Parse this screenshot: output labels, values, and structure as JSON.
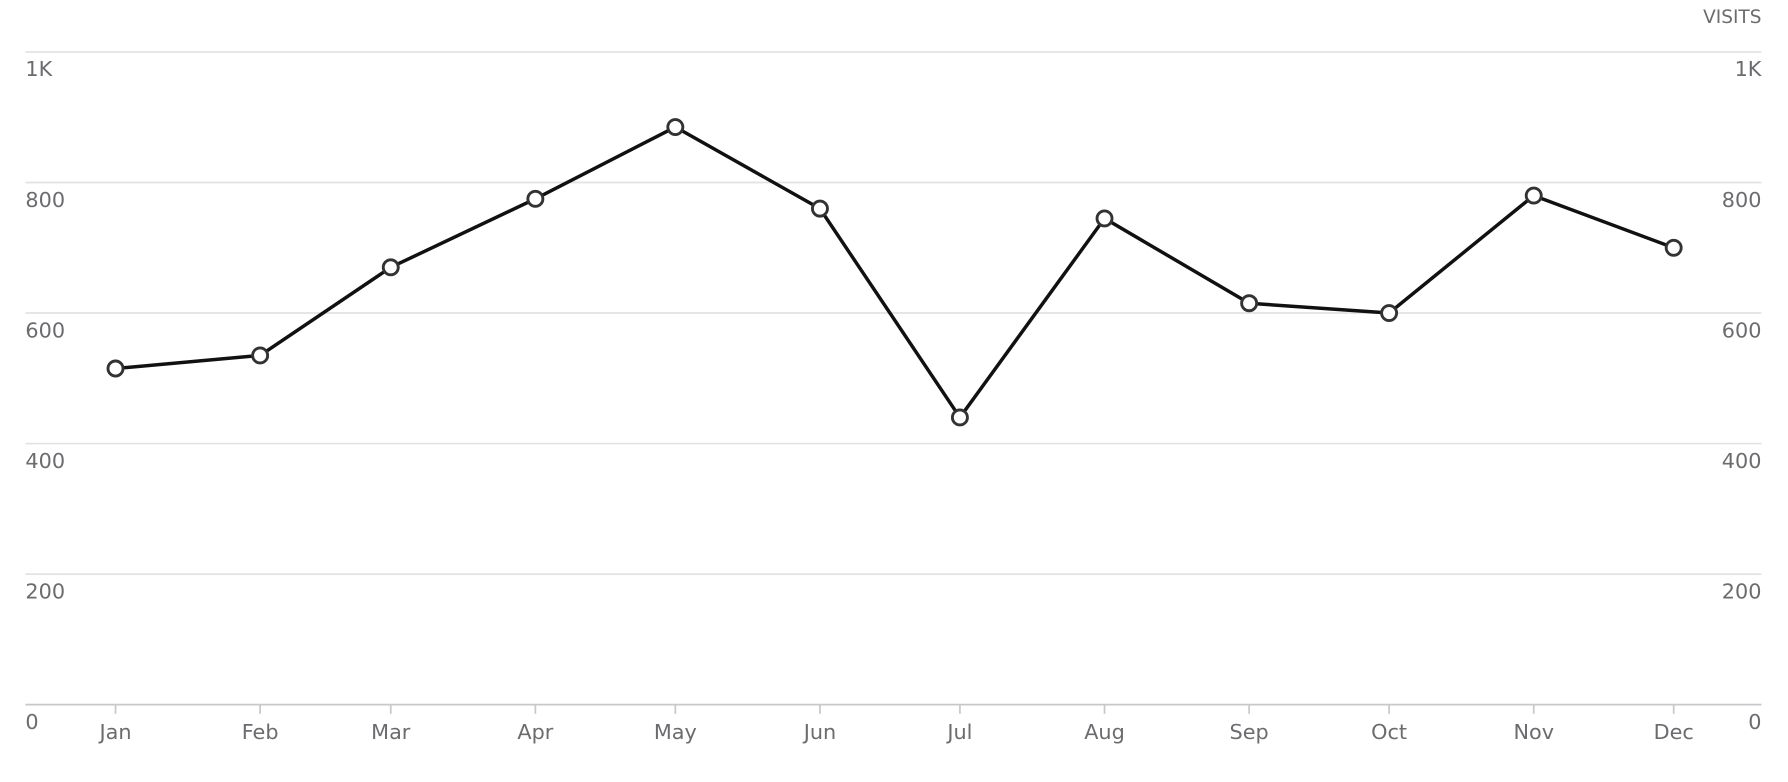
{
  "chart_data": {
    "type": "line",
    "y2_label": "VISITS",
    "categories": [
      "Jan",
      "Feb",
      "Mar",
      "Apr",
      "May",
      "Jun",
      "Jul",
      "Aug",
      "Sep",
      "Oct",
      "Nov",
      "Dec"
    ],
    "series": [
      {
        "color": "#111111",
        "values": [
          515,
          535,
          670,
          775,
          885,
          760,
          440,
          745,
          615,
          600,
          780,
          700
        ]
      }
    ],
    "ylim": [
      0,
      1000
    ],
    "yticks": [
      0,
      200,
      400,
      600,
      800,
      {
        "value": 1000,
        "label": "1K"
      }
    ],
    "y2lim": [
      0,
      1000
    ],
    "y2ticks": [
      0,
      200,
      400,
      600,
      800,
      {
        "value": 1000,
        "label": "1K"
      }
    ],
    "grid": true
  }
}
